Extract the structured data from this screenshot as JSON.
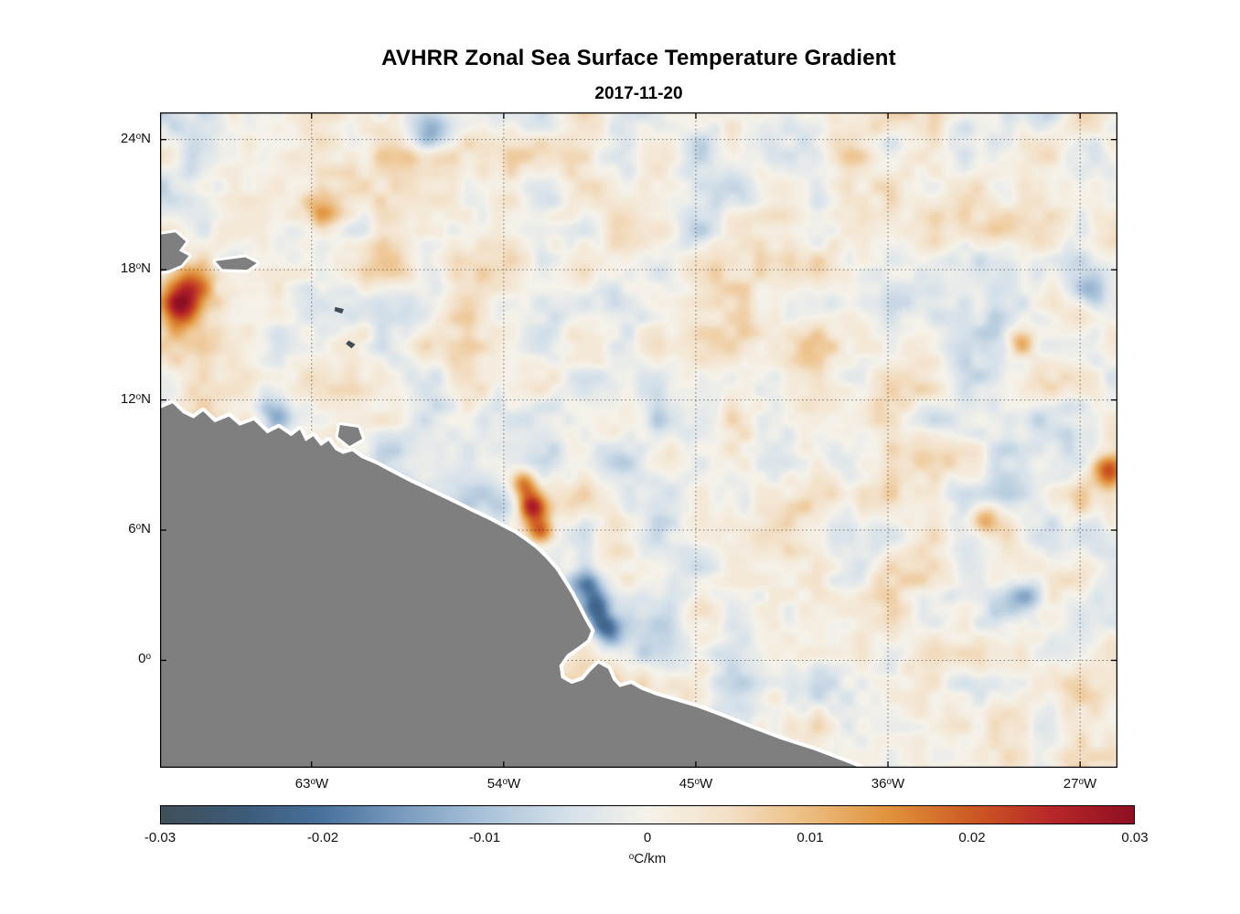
{
  "figure": {
    "title": "AVHRR Zonal Sea Surface Temperature Gradient",
    "subtitle": "2017-11-20",
    "background": "#ffffff"
  },
  "chart_data": {
    "type": "heatmap",
    "title": "AVHRR Zonal Sea Surface Temperature Gradient",
    "subtitle": "2017-11-20",
    "description": "Satellite map of zonal sea-surface-temperature gradient (degC/km) over the tropical western Atlantic off northeastern South America. Noisy diverging field mostly near zero (pale blue/cream) with scattered warm (orange/red) and cool (blue) filaments, strongest along the Guiana/Brazil coast near 6N. Land is gray with a white coastal halo; dotted black graticule at labeled ticks.",
    "x_axis": {
      "tick_labels": [
        "63°W",
        "54°W",
        "45°W",
        "36°W",
        "27°W"
      ],
      "tick_values": [
        -63,
        -54,
        -45,
        -36,
        -27
      ],
      "range": [
        -70.1,
        -25.25
      ]
    },
    "y_axis": {
      "tick_labels": [
        "24°N",
        "18°N",
        "12°N",
        "6°N",
        "0°"
      ],
      "tick_values": [
        24,
        18,
        12,
        6,
        0
      ],
      "range": [
        25.25,
        -4.95
      ]
    },
    "grid": {
      "style": "dotted",
      "color": "#000000",
      "opacity": 0.5
    },
    "frame_color": "#000000",
    "colorbar": {
      "label": "°C/km",
      "min": -0.03,
      "max": 0.03,
      "tick_labels": [
        "-0.03",
        "-0.02",
        "-0.01",
        "0",
        "0.01",
        "0.02",
        "0.03"
      ],
      "tick_values": [
        -0.03,
        -0.02,
        -0.01,
        0,
        0.01,
        0.02,
        0.03
      ],
      "stops": [
        [
          0.0,
          "#3f4f58"
        ],
        [
          0.09,
          "#3d5c7b"
        ],
        [
          0.167,
          "#48719b"
        ],
        [
          0.25,
          "#7b9cc0"
        ],
        [
          0.333,
          "#a9c3d9"
        ],
        [
          0.42,
          "#d6e1ea"
        ],
        [
          0.5,
          "#f5f2ea"
        ],
        [
          0.58,
          "#f3e1c9"
        ],
        [
          0.667,
          "#ecbc7f"
        ],
        [
          0.75,
          "#e0913a"
        ],
        [
          0.833,
          "#cd5a24"
        ],
        [
          0.917,
          "#b72628"
        ],
        [
          1.0,
          "#8e0f22"
        ]
      ]
    },
    "land": {
      "color": "#7f7f7f",
      "halo_color": "#ffffff",
      "islet_color": "#3d4c55",
      "mainland": [
        [
          0.0,
          0.452
        ],
        [
          0.013,
          0.444
        ],
        [
          0.024,
          0.459
        ],
        [
          0.035,
          0.467
        ],
        [
          0.045,
          0.456
        ],
        [
          0.057,
          0.473
        ],
        [
          0.072,
          0.464
        ],
        [
          0.083,
          0.478
        ],
        [
          0.098,
          0.47
        ],
        [
          0.112,
          0.49
        ],
        [
          0.124,
          0.481
        ],
        [
          0.137,
          0.494
        ],
        [
          0.146,
          0.484
        ],
        [
          0.152,
          0.502
        ],
        [
          0.16,
          0.494
        ],
        [
          0.168,
          0.509
        ],
        [
          0.176,
          0.501
        ],
        [
          0.183,
          0.515
        ],
        [
          0.191,
          0.521
        ],
        [
          0.201,
          0.517
        ],
        [
          0.21,
          0.527
        ],
        [
          0.226,
          0.537
        ],
        [
          0.244,
          0.551
        ],
        [
          0.261,
          0.564
        ],
        [
          0.277,
          0.575
        ],
        [
          0.293,
          0.586
        ],
        [
          0.31,
          0.598
        ],
        [
          0.328,
          0.611
        ],
        [
          0.344,
          0.622
        ],
        [
          0.358,
          0.633
        ],
        [
          0.37,
          0.642
        ],
        [
          0.381,
          0.653
        ],
        [
          0.392,
          0.665
        ],
        [
          0.402,
          0.679
        ],
        [
          0.413,
          0.697
        ],
        [
          0.421,
          0.715
        ],
        [
          0.429,
          0.734
        ],
        [
          0.436,
          0.753
        ],
        [
          0.443,
          0.773
        ],
        [
          0.45,
          0.791
        ],
        [
          0.446,
          0.805
        ],
        [
          0.436,
          0.816
        ],
        [
          0.425,
          0.827
        ],
        [
          0.417,
          0.844
        ],
        [
          0.419,
          0.863
        ],
        [
          0.43,
          0.872
        ],
        [
          0.442,
          0.866
        ],
        [
          0.45,
          0.852
        ],
        [
          0.458,
          0.841
        ],
        [
          0.468,
          0.849
        ],
        [
          0.473,
          0.866
        ],
        [
          0.48,
          0.877
        ],
        [
          0.492,
          0.872
        ],
        [
          0.503,
          0.881
        ],
        [
          0.519,
          0.89
        ],
        [
          0.538,
          0.898
        ],
        [
          0.561,
          0.908
        ],
        [
          0.587,
          0.922
        ],
        [
          0.616,
          0.939
        ],
        [
          0.649,
          0.957
        ],
        [
          0.683,
          0.973
        ],
        [
          0.712,
          0.989
        ],
        [
          0.731,
          1.0
        ],
        [
          0.74,
          1.08
        ],
        [
          -0.05,
          1.08
        ],
        [
          -0.05,
          0.452
        ]
      ],
      "islands": [
        [
          [
            -0.02,
            0.191
          ],
          [
            0.016,
            0.183
          ],
          [
            0.027,
            0.197
          ],
          [
            0.02,
            0.211
          ],
          [
            0.03,
            0.219
          ],
          [
            0.022,
            0.233
          ],
          [
            0.009,
            0.241
          ],
          [
            -0.02,
            0.246
          ]
        ],
        [
          [
            0.058,
            0.227
          ],
          [
            0.089,
            0.221
          ],
          [
            0.101,
            0.23
          ],
          [
            0.091,
            0.24
          ],
          [
            0.065,
            0.239
          ]
        ],
        [
          [
            0.188,
            0.477
          ],
          [
            0.207,
            0.481
          ],
          [
            0.211,
            0.498
          ],
          [
            0.198,
            0.509
          ],
          [
            0.186,
            0.495
          ]
        ]
      ],
      "islets": [
        [
          [
            0.183,
            0.297
          ],
          [
            0.192,
            0.3
          ],
          [
            0.19,
            0.307
          ],
          [
            0.182,
            0.303
          ]
        ],
        [
          [
            0.197,
            0.348
          ],
          [
            0.204,
            0.354
          ],
          [
            0.2,
            0.36
          ],
          [
            0.194,
            0.353
          ]
        ]
      ]
    },
    "features": [
      {
        "x": 0.029,
        "y": 0.268,
        "amp": 0.02,
        "r": 0.02
      },
      {
        "x": 0.022,
        "y": 0.3,
        "amp": 0.016,
        "r": 0.014
      },
      {
        "x": 0.167,
        "y": 0.152,
        "amp": 0.015,
        "r": 0.016
      },
      {
        "x": 0.378,
        "y": 0.565,
        "amp": 0.02,
        "r": 0.011
      },
      {
        "x": 0.388,
        "y": 0.6,
        "amp": 0.024,
        "r": 0.011
      },
      {
        "x": 0.396,
        "y": 0.635,
        "amp": 0.022,
        "r": 0.011
      },
      {
        "x": 0.12,
        "y": 0.462,
        "amp": -0.018,
        "r": 0.014
      },
      {
        "x": 0.445,
        "y": 0.72,
        "amp": -0.016,
        "r": 0.011
      },
      {
        "x": 0.455,
        "y": 0.755,
        "amp": -0.017,
        "r": 0.011
      },
      {
        "x": 0.465,
        "y": 0.79,
        "amp": -0.016,
        "r": 0.011
      },
      {
        "x": 0.282,
        "y": 0.03,
        "amp": -0.015,
        "r": 0.014
      },
      {
        "x": 0.898,
        "y": 0.351,
        "amp": 0.018,
        "r": 0.012
      },
      {
        "x": 0.988,
        "y": 0.547,
        "amp": 0.017,
        "r": 0.012
      },
      {
        "x": 0.969,
        "y": 0.275,
        "amp": -0.015,
        "r": 0.014
      },
      {
        "x": 0.905,
        "y": 0.74,
        "amp": -0.014,
        "r": 0.014
      },
      {
        "x": 0.86,
        "y": 0.62,
        "amp": 0.014,
        "r": 0.011
      }
    ],
    "field": {
      "typical_range": [
        -0.012,
        0.012
      ],
      "units": "°C/km"
    }
  }
}
